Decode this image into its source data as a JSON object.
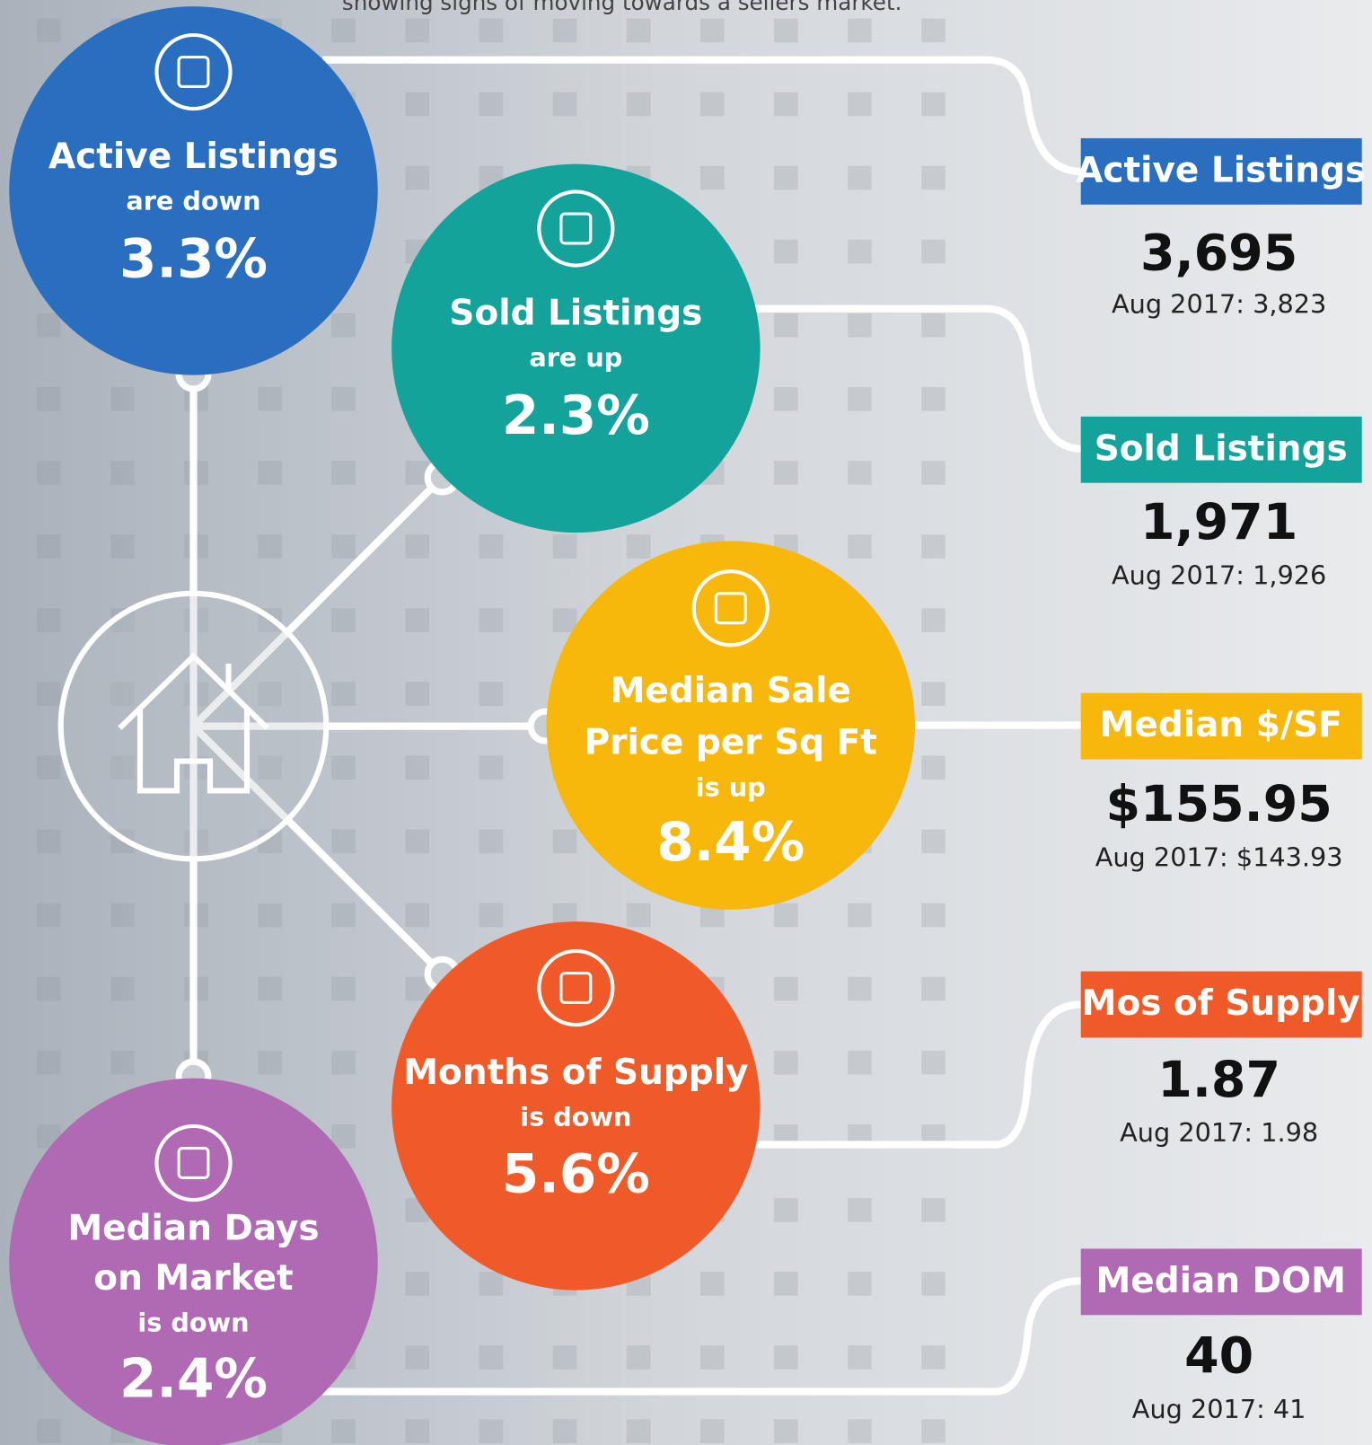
{
  "intro": "showing signs of moving towards a sellers market.",
  "circles": [
    {
      "title_lines": [
        "Active Listings"
      ],
      "subtitle": "are down",
      "value": "3.3%"
    },
    {
      "title_lines": [
        "Sold Listings"
      ],
      "subtitle": "are up",
      "value": "2.3%"
    },
    {
      "title_lines": [
        "Median Sale",
        "Price per Sq Ft"
      ],
      "subtitle": "is up",
      "value": "8.4%"
    },
    {
      "title_lines": [
        "Months of Supply"
      ],
      "subtitle": "is down",
      "value": "5.6%"
    },
    {
      "title_lines": [
        "Median Days",
        "on Market"
      ],
      "subtitle": "is down",
      "value": "2.4%"
    }
  ],
  "panels": [
    {
      "label": "Active Listings",
      "value": "3,695",
      "comparison": "Aug 2017: 3,823"
    },
    {
      "label": "Sold Listings",
      "value": "1,971",
      "comparison": "Aug 2017: 1,926"
    },
    {
      "label": "Median $/SF",
      "value": "$155.95",
      "comparison": "Aug 2017: $143.93"
    },
    {
      "label": "Mos of Supply",
      "value": "1.87",
      "comparison": "Aug 2017: 1.98"
    },
    {
      "label": "Median DOM",
      "value": "40",
      "comparison": "Aug 2017: 41"
    }
  ]
}
